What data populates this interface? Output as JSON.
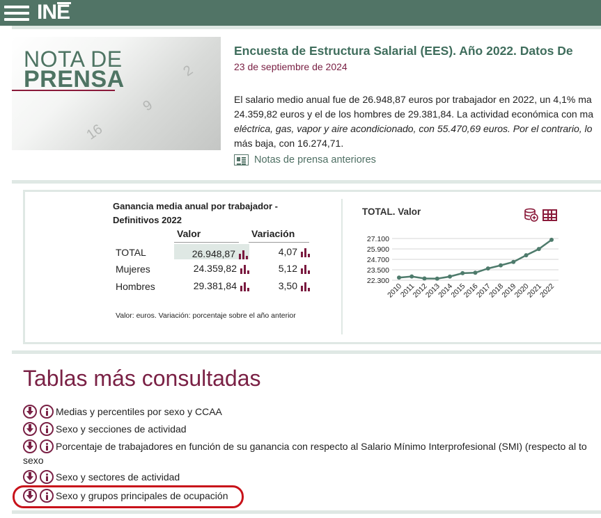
{
  "header": {
    "logo_text": "INE",
    "menu_icon": "hamburger-menu-icon"
  },
  "press": {
    "image_line1": "NOTA DE",
    "image_line2": "PRENSA",
    "title": "Encuesta de Estructura Salarial (EES). Año 2022. Datos De",
    "date": "23 de septiembre de 2024",
    "body_lines": [
      "El salario medio anual fue de 26.948,87 euros por trabajador en 2022, un 4,1% ma",
      "24.359,82 euros y el de los hombres de 29.381,84. La actividad económica con ma",
      "eléctrica, gas, vapor y aire acondicionado, con 55.470,69 euros. Por el contrario, lo",
      "más baja, con 16.274,71."
    ],
    "prev_link": "Notas de prensa anteriores"
  },
  "summary_table": {
    "title": "Ganancia media anual por trabajador - Definitivos 2022",
    "col_valor": "Valor",
    "col_variacion": "Variación",
    "rows": [
      {
        "label": "TOTAL",
        "valor": "26.948,87",
        "variacion": "4,07"
      },
      {
        "label": "Mujeres",
        "valor": "24.359,82",
        "variacion": "5,12"
      },
      {
        "label": "Hombres",
        "valor": "29.381,84",
        "variacion": "3,50"
      }
    ],
    "note": "Valor: euros. Variación: porcentaje sobre el año anterior"
  },
  "chart_data": {
    "type": "line",
    "title": "TOTAL. Valor",
    "x": [
      "2010",
      "2011",
      "2012",
      "2013",
      "2014",
      "2015",
      "2016",
      "2017",
      "2018",
      "2019",
      "2020",
      "2021",
      "2022"
    ],
    "series": [
      {
        "values": [
          22600,
          22730,
          22500,
          22480,
          22720,
          23110,
          23160,
          23650,
          24010,
          24400,
          25170,
          25890,
          26949
        ]
      }
    ],
    "y_ticks": [
      "27.100",
      "25.900",
      "24.700",
      "23.500",
      "22.300"
    ],
    "y_tick_values": [
      27100,
      25900,
      24700,
      23500,
      22300
    ],
    "ylim": [
      22300,
      27100
    ],
    "line_color": "#4e7b6c",
    "grid": true
  },
  "tablas": {
    "title": "Tablas más consultadas",
    "items": [
      {
        "text": "Medias y percentiles por sexo y CCAA"
      },
      {
        "text": "Sexo y secciones de actividad"
      },
      {
        "text": "Porcentaje de trabajadores en función de su ganancia con respecto al Salario Mínimo Interprofesional (SMI) (respecto al to",
        "wrap": "sexo"
      },
      {
        "text": "Sexo y sectores de actividad"
      },
      {
        "text": "Sexo y grupos principales de ocupación"
      }
    ]
  },
  "colors": {
    "header_bg": "#517466",
    "accent_green": "#3f6d5c",
    "accent_maroon": "#7a2145",
    "highlight_red": "#c8121a"
  }
}
